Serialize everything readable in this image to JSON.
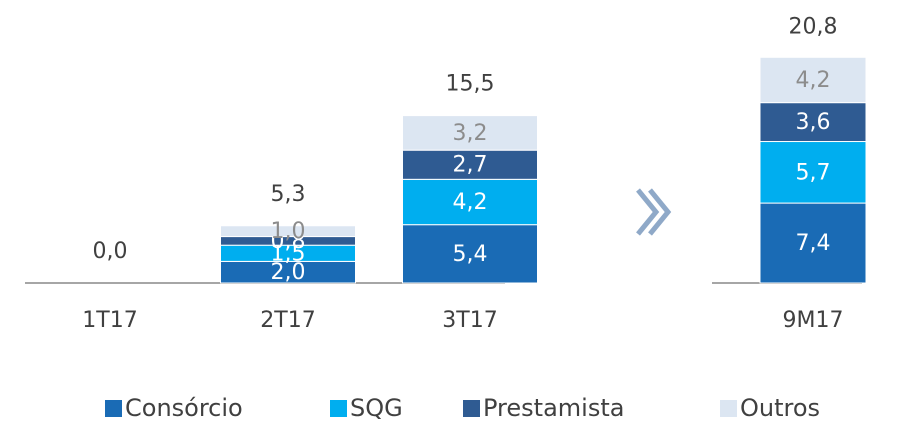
{
  "chart_data": {
    "type": "stacked-bar",
    "categories": [
      "1T17",
      "2T17",
      "3T17",
      "9M17"
    ],
    "series": [
      {
        "name": "Consórcio",
        "color": "#1a6bb5",
        "values": [
          0,
          2.0,
          5.4,
          7.4
        ],
        "value_labels": [
          null,
          "2,0",
          "5,4",
          "7,4"
        ]
      },
      {
        "name": "SQG",
        "color": "#00aeef",
        "values": [
          0,
          1.5,
          4.2,
          5.7
        ],
        "value_labels": [
          null,
          "1,5",
          "4,2",
          "5,7"
        ]
      },
      {
        "name": "Prestamista",
        "color": "#2f5b92",
        "values": [
          0,
          0.8,
          2.7,
          3.6
        ],
        "value_labels": [
          null,
          "0,8",
          "2,7",
          "3,6"
        ]
      },
      {
        "name": "Outros",
        "color": "#dce6f2",
        "values": [
          0,
          1.0,
          3.2,
          4.2
        ],
        "value_labels": [
          null,
          "1,0",
          "3,2",
          "4,2"
        ]
      }
    ],
    "totals": [
      0,
      5.3,
      15.5,
      20.8
    ],
    "total_labels": [
      "0,0",
      "5,3",
      "15,5",
      "20,8"
    ]
  }
}
